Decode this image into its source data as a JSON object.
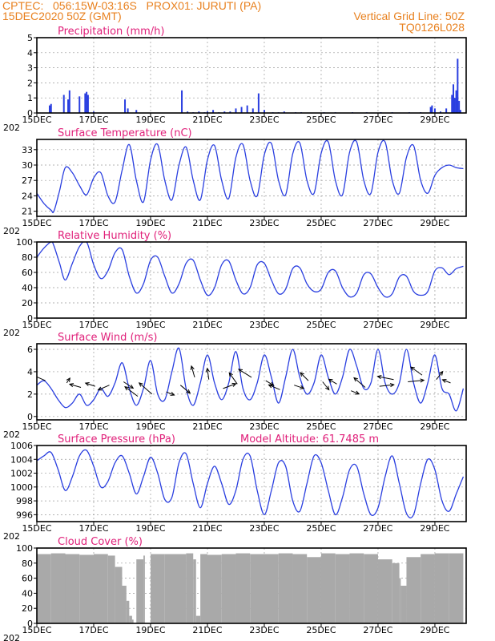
{
  "header": {
    "line1_left": "CPTEC:   056:15W-03:16S   PROX01: JURUTI (PA)",
    "line2_left": "15DEC2020 50Z (GMT)",
    "line2_right": "Vertical Grid Line: 50Z",
    "line3_right": "TQ0126L028"
  },
  "colors": {
    "header": "#e8801e",
    "title": "#e0207a",
    "series": "#2a3fe0",
    "cloud": "#a9a9a9",
    "grid": "#999999"
  },
  "x_axis": {
    "labels": [
      "15DEC",
      "17DEC",
      "19DEC",
      "21DEC",
      "23DEC",
      "25DEC",
      "27DEC",
      "29DEC"
    ],
    "label_days": [
      0,
      2,
      4,
      6,
      8,
      10,
      12,
      14
    ],
    "clipped_label": "202",
    "xlim_days": [
      0,
      15.1
    ]
  },
  "chart_data": [
    {
      "type": "bar",
      "title": "Precipitation (mm/h)",
      "ylim": [
        0,
        5
      ],
      "yticks": [
        0,
        1,
        2,
        3,
        4,
        5
      ],
      "x": [
        0.45,
        0.5,
        0.95,
        1.1,
        1.15,
        1.5,
        1.7,
        1.75,
        1.8,
        2.0,
        3.1,
        3.2,
        3.5,
        5.1,
        5.3,
        5.5,
        5.7,
        5.9,
        6.0,
        6.2,
        6.4,
        6.6,
        6.8,
        7.0,
        7.2,
        7.4,
        7.6,
        7.8,
        8.0,
        8.3,
        8.5,
        8.7,
        9.1,
        9.3,
        10.1,
        10.5,
        11.1,
        11.6,
        12.1,
        12.5,
        13.1,
        13.5,
        13.85,
        13.9,
        14.0,
        14.2,
        14.4,
        14.6,
        14.65,
        14.7,
        14.75,
        14.8,
        14.85,
        14.9
      ],
      "values": [
        0.5,
        0.6,
        1.2,
        0.9,
        1.5,
        1.1,
        1.3,
        1.4,
        1.2,
        0.1,
        0.9,
        0.3,
        0.2,
        1.5,
        0.1,
        0.05,
        0.1,
        0.05,
        0.1,
        0.2,
        0.05,
        0.1,
        0.1,
        0.3,
        0.4,
        0.5,
        0.3,
        1.3,
        0.2,
        0.05,
        0.05,
        0.1,
        0.05,
        0.05,
        0.05,
        0.05,
        0.05,
        0.05,
        0.05,
        0.05,
        0.05,
        0.05,
        0.4,
        0.5,
        0.3,
        0.1,
        0.3,
        1.2,
        1.9,
        1.0,
        1.5,
        3.6,
        0.8,
        0.2
      ]
    },
    {
      "type": "line",
      "title": "Surface Temperature (nC)",
      "ylim": [
        20,
        35
      ],
      "yticks": [
        21,
        24,
        27,
        30,
        33
      ],
      "x": [
        0,
        0.25,
        0.5,
        0.6,
        0.8,
        1.0,
        1.25,
        1.5,
        1.75,
        2.0,
        2.25,
        2.5,
        2.75,
        3.0,
        3.25,
        3.5,
        3.75,
        4.0,
        4.25,
        4.5,
        4.75,
        5.0,
        5.25,
        5.5,
        5.75,
        6.0,
        6.25,
        6.5,
        6.75,
        7.0,
        7.25,
        7.5,
        7.75,
        8.0,
        8.25,
        8.5,
        8.75,
        9.0,
        9.25,
        9.5,
        9.75,
        10.0,
        10.25,
        10.5,
        10.75,
        11.0,
        11.25,
        11.5,
        11.75,
        12.0,
        12.25,
        12.5,
        12.75,
        13.0,
        13.25,
        13.5,
        13.75,
        14.0,
        14.25,
        14.5,
        14.75,
        15.0
      ],
      "values": [
        24.5,
        22.5,
        21.2,
        21,
        25,
        29.5,
        28.5,
        26,
        24.2,
        27.5,
        28.5,
        24,
        22.8,
        29,
        34,
        27,
        22.8,
        31,
        34,
        27,
        23.2,
        30,
        33.5,
        27,
        23.2,
        31,
        33.8,
        27,
        23.5,
        31.5,
        34,
        27,
        24,
        32,
        34.2,
        27,
        24.2,
        32.2,
        34.3,
        27,
        24.5,
        32.3,
        34.5,
        27,
        24.2,
        32.5,
        34.5,
        27,
        24.5,
        32.5,
        34.5,
        27,
        24.5,
        31.5,
        33.8,
        27,
        24.5,
        28,
        29.5,
        30,
        29.5,
        29.3
      ]
    },
    {
      "type": "line",
      "title": "Relative Humidity (%)",
      "ylim": [
        0,
        100
      ],
      "yticks": [
        0,
        20,
        40,
        60,
        80,
        100
      ],
      "x": [
        0,
        0.25,
        0.5,
        0.6,
        0.8,
        1.0,
        1.25,
        1.5,
        1.75,
        2.0,
        2.25,
        2.5,
        2.75,
        3.0,
        3.25,
        3.5,
        3.75,
        4.0,
        4.25,
        4.5,
        4.75,
        5.0,
        5.25,
        5.5,
        5.75,
        6.0,
        6.25,
        6.5,
        6.75,
        7.0,
        7.25,
        7.5,
        7.75,
        8.0,
        8.25,
        8.5,
        8.75,
        9.0,
        9.25,
        9.5,
        9.75,
        10.0,
        10.25,
        10.5,
        10.75,
        11.0,
        11.25,
        11.5,
        11.75,
        12.0,
        12.25,
        12.5,
        12.75,
        13.0,
        13.25,
        13.5,
        13.75,
        14.0,
        14.25,
        14.5,
        14.75,
        15.0
      ],
      "values": [
        80,
        92,
        100,
        95,
        72,
        50,
        72,
        94,
        100,
        70,
        52,
        62,
        86,
        90,
        55,
        33,
        45,
        76,
        80,
        55,
        33,
        45,
        72,
        76,
        50,
        30,
        40,
        70,
        75,
        50,
        32,
        40,
        70,
        72,
        50,
        32,
        38,
        65,
        66,
        45,
        35,
        38,
        60,
        62,
        40,
        28,
        33,
        57,
        58,
        40,
        28,
        32,
        54,
        55,
        35,
        30,
        35,
        62,
        66,
        57,
        65,
        68
      ]
    },
    {
      "type": "line",
      "title": "Surface Wind (m/s)",
      "ylim": [
        -0.3,
        6.5
      ],
      "yticks": [
        0,
        2,
        4,
        6
      ],
      "x": [
        0,
        0.25,
        0.5,
        0.75,
        1.0,
        1.25,
        1.5,
        1.75,
        2.0,
        2.25,
        2.5,
        2.75,
        3.0,
        3.25,
        3.5,
        3.75,
        4.0,
        4.25,
        4.5,
        4.75,
        5.0,
        5.25,
        5.5,
        5.75,
        6.0,
        6.25,
        6.5,
        6.75,
        7.0,
        7.25,
        7.5,
        7.75,
        8.0,
        8.25,
        8.5,
        8.75,
        9.0,
        9.25,
        9.5,
        9.75,
        10.0,
        10.25,
        10.5,
        10.75,
        11.0,
        11.25,
        11.5,
        11.75,
        12.0,
        12.25,
        12.5,
        12.75,
        13.0,
        13.25,
        13.5,
        13.75,
        14.0,
        14.25,
        14.5,
        14.75,
        15.0
      ],
      "values": [
        2.8,
        3.2,
        2.5,
        1.5,
        0.8,
        1.2,
        2.0,
        1.0,
        1.5,
        2.5,
        1.8,
        3.0,
        4.8,
        2.5,
        1.0,
        2.5,
        5.0,
        2.0,
        1.5,
        4.0,
        6.1,
        2.5,
        1.0,
        3.0,
        5.5,
        3.0,
        1.5,
        3.0,
        5.8,
        2.5,
        1.5,
        3.0,
        5.5,
        3.5,
        1.2,
        3.5,
        6.0,
        3.5,
        2.0,
        3.0,
        5.5,
        3.5,
        2.0,
        3.5,
        6.0,
        4.5,
        2.5,
        3.0,
        6.0,
        3.0,
        2.0,
        3.0,
        6.0,
        3.0,
        1.2,
        3.0,
        5.5,
        2.5,
        2.0,
        0.5,
        2.5
      ],
      "arrows": {
        "x": [
          0.3,
          1.05,
          1.55,
          2.05,
          2.55,
          3.05,
          3.55,
          4.05,
          4.55,
          5.05,
          5.55,
          6.05,
          6.55,
          7.05,
          7.55,
          8.05,
          8.55,
          9.05,
          9.55,
          10.05,
          10.55,
          11.05,
          11.55,
          12.05,
          12.55,
          13.05,
          13.55,
          14.05,
          14.55
        ],
        "y": [
          3.2,
          3.0,
          2.6,
          2.7,
          2.8,
          3.1,
          1.8,
          2.0,
          2.2,
          2.8,
          3.5,
          3.3,
          2.5,
          2.9,
          3.5,
          3.2,
          2.4,
          2.8,
          3.2,
          3.1,
          2.9,
          2.3,
          2.6,
          2.7,
          3.3,
          3.1,
          3.7,
          3.3,
          3.0
        ],
        "dx": [
          -18,
          4,
          -14,
          -12,
          -14,
          12,
          -16,
          -16,
          10,
          12,
          -4,
          -2,
          16,
          -10,
          -16,
          10,
          -14,
          12,
          -10,
          8,
          -10,
          10,
          -14,
          18,
          -20,
          20,
          -14,
          8,
          -10
        ],
        "dy": [
          -8,
          -6,
          -4,
          -4,
          6,
          8,
          -12,
          -14,
          4,
          10,
          -14,
          -14,
          -6,
          -14,
          -10,
          6,
          -6,
          4,
          -10,
          10,
          -6,
          4,
          -12,
          -2,
          -4,
          -2,
          -10,
          -10,
          -4
        ]
      }
    },
    {
      "type": "line",
      "title": "Surface Pressure (hPa)",
      "annotation": "Model Altitude: 61.7485  m",
      "ylim": [
        995,
        1006
      ],
      "yticks": [
        996,
        998,
        1000,
        1002,
        1004,
        1006
      ],
      "x": [
        0,
        0.25,
        0.5,
        0.75,
        1.0,
        1.25,
        1.5,
        1.75,
        2.0,
        2.25,
        2.5,
        2.75,
        3.0,
        3.25,
        3.5,
        3.75,
        4.0,
        4.25,
        4.5,
        4.75,
        5.0,
        5.25,
        5.5,
        5.75,
        6.0,
        6.25,
        6.5,
        6.75,
        7.0,
        7.25,
        7.5,
        7.75,
        8.0,
        8.25,
        8.5,
        8.75,
        9.0,
        9.25,
        9.5,
        9.75,
        10.0,
        10.25,
        10.5,
        10.75,
        11.0,
        11.25,
        11.5,
        11.75,
        12.0,
        12.25,
        12.5,
        12.75,
        13.0,
        13.25,
        13.5,
        13.75,
        14.0,
        14.25,
        14.5,
        14.75,
        15.0
      ],
      "values": [
        1003.8,
        1004.5,
        1005,
        1002.5,
        999.5,
        1001.5,
        1004.5,
        1005.3,
        1003,
        1000,
        1000.8,
        1003.5,
        1004.5,
        1002,
        999,
        1001.5,
        1004.3,
        1002,
        998.2,
        998.5,
        1003.5,
        1004.8,
        1000.5,
        997,
        1000.5,
        1003,
        1000.5,
        997.5,
        999.5,
        1004,
        1004.5,
        999.5,
        996,
        999.5,
        1003.5,
        1003,
        998,
        996.5,
        1000.5,
        1004.5,
        1003.5,
        999.5,
        996,
        998.5,
        1002.5,
        1003,
        999,
        996,
        997,
        1001.5,
        1004.5,
        1000.5,
        996.2,
        996,
        1000.5,
        1004,
        1002.5,
        998,
        996.5,
        999,
        1001.5
      ]
    },
    {
      "type": "bar",
      "title": "Cloud Cover (%)",
      "ylim": [
        0,
        100
      ],
      "yticks": [
        0,
        20,
        40,
        60,
        80,
        100
      ],
      "x": [
        0,
        0.5,
        1.0,
        1.5,
        2.0,
        2.5,
        2.75,
        3.0,
        3.15,
        3.25,
        3.35,
        3.4,
        3.5,
        3.75,
        3.8,
        4.0,
        4.5,
        5.0,
        5.25,
        5.5,
        5.6,
        5.75,
        6.0,
        6.5,
        7.0,
        7.5,
        8.0,
        8.5,
        9.0,
        9.5,
        10.0,
        10.5,
        11.0,
        11.5,
        12.0,
        12.5,
        12.75,
        12.8,
        13.0,
        13.5,
        14.0,
        14.5,
        15.0
      ],
      "values": [
        92,
        93,
        92,
        91,
        92,
        90,
        75,
        50,
        30,
        10,
        5,
        0,
        85,
        90,
        0,
        92,
        92,
        92,
        93,
        85,
        10,
        92,
        91,
        92,
        93,
        92,
        92,
        93,
        92,
        88,
        93,
        92,
        93,
        92,
        85,
        80,
        60,
        50,
        88,
        92,
        93,
        93,
        92
      ]
    }
  ]
}
